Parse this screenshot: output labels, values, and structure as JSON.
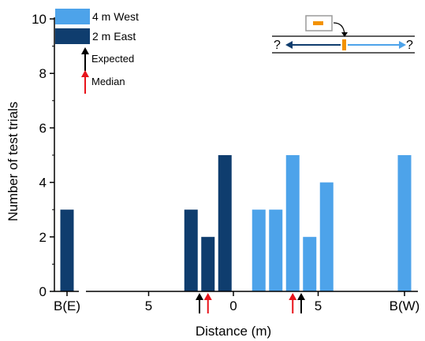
{
  "chart_data": {
    "type": "bar",
    "xlabel": "Distance (m)",
    "ylabel": "Number of test trials",
    "ylim": [
      0,
      10
    ],
    "yticks": [
      0,
      2,
      4,
      6,
      8,
      10
    ],
    "xticks": [
      {
        "label": "B(E)",
        "pos": "B(E)"
      },
      {
        "label": "5",
        "pos": -5
      },
      {
        "label": "0",
        "pos": 0
      },
      {
        "label": "5",
        "pos": 5
      },
      {
        "label": "B(W)",
        "pos": "B(W)"
      }
    ],
    "legend": {
      "placement": "top-left",
      "entries": [
        {
          "label": "4 m West",
          "color": "#4da3ea"
        },
        {
          "label": "2 m East",
          "color": "#0f3d6e"
        }
      ]
    },
    "series": [
      {
        "name": "4 m West",
        "color": "#4da3ea",
        "points": [
          {
            "x": 1.5,
            "value": 3
          },
          {
            "x": 2.5,
            "value": 3
          },
          {
            "x": 3.5,
            "value": 5
          },
          {
            "x": 4.5,
            "value": 2
          },
          {
            "x": 5.5,
            "value": 4
          },
          {
            "x": "B(W)",
            "value": 5
          }
        ]
      },
      {
        "name": "2 m East",
        "color": "#0f3d6e",
        "points": [
          {
            "x": "B(E)",
            "value": 3
          },
          {
            "x": -2.5,
            "value": 3
          },
          {
            "x": -1.5,
            "value": 2
          },
          {
            "x": -0.5,
            "value": 5
          }
        ]
      }
    ],
    "markers": {
      "expected_label": "Expected",
      "median_label": "Median",
      "expected_color": "#000000",
      "median_color": "#e8141b",
      "expected_x": [
        -2,
        4
      ],
      "median_x": [
        -1.5,
        3.5
      ]
    },
    "inset": {
      "left_mark": "?",
      "right_mark": "?",
      "start_color": "#f39200",
      "west_color": "#4da3ea",
      "east_color": "#0f3d6e"
    }
  }
}
